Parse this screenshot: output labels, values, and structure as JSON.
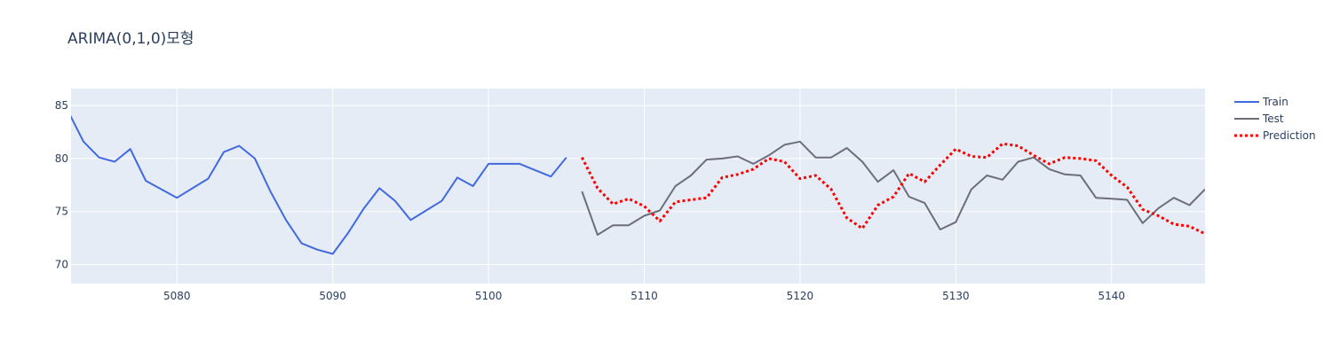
{
  "chart_data": {
    "type": "line",
    "title": "ARIMA(0,1,0)모형",
    "xlabel": "",
    "ylabel": "",
    "xlim": [
      5073.2,
      5146
    ],
    "ylim": [
      68.2,
      86.6
    ],
    "xticks": [
      5080,
      5090,
      5100,
      5110,
      5120,
      5130,
      5140
    ],
    "yticks": [
      70,
      75,
      80,
      85
    ],
    "grid": true,
    "legend_position": "top-right",
    "series": [
      {
        "name": "Train",
        "color": "#4169e1",
        "style": "solid",
        "x": [
          5073,
          5074,
          5075,
          5076,
          5077,
          5078,
          5079,
          5080,
          5081,
          5082,
          5083,
          5084,
          5085,
          5086,
          5087,
          5088,
          5089,
          5090,
          5091,
          5092,
          5093,
          5094,
          5095,
          5096,
          5097,
          5098,
          5099,
          5100,
          5101,
          5102,
          5103,
          5104,
          5105
        ],
        "y": [
          84.5,
          81.6,
          80.1,
          79.7,
          80.9,
          77.9,
          77.1,
          76.3,
          77.2,
          78.1,
          80.6,
          81.2,
          80.0,
          76.9,
          74.2,
          72.0,
          71.4,
          71.0,
          73.0,
          75.3,
          77.2,
          76.0,
          74.2,
          75.1,
          76.0,
          78.2,
          77.4,
          79.5,
          79.5,
          79.5,
          78.9,
          78.3,
          80.1
        ]
      },
      {
        "name": "Test",
        "color": "#6e6e7a",
        "style": "solid",
        "x": [
          5106,
          5107,
          5108,
          5109,
          5110,
          5111,
          5112,
          5113,
          5114,
          5115,
          5116,
          5117,
          5118,
          5119,
          5120,
          5121,
          5122,
          5123,
          5124,
          5125,
          5126,
          5127,
          5128,
          5129,
          5130,
          5131,
          5132,
          5133,
          5134,
          5135,
          5136,
          5137,
          5138,
          5139,
          5140,
          5141,
          5142,
          5143,
          5144,
          5145,
          5146
        ],
        "y": [
          76.9,
          72.8,
          73.7,
          73.7,
          74.6,
          75.1,
          77.4,
          78.4,
          79.9,
          80.0,
          80.2,
          79.5,
          80.3,
          81.3,
          81.6,
          80.1,
          80.1,
          81.0,
          79.7,
          77.8,
          78.9,
          76.4,
          75.8,
          73.3,
          74.0,
          77.1,
          78.4,
          78.0,
          79.7,
          80.1,
          79.0,
          78.5,
          78.4,
          76.3,
          76.2,
          76.1,
          73.9,
          75.3,
          76.3,
          75.6,
          77.1
        ]
      },
      {
        "name": "Prediction",
        "color": "#ff0000",
        "style": "dotted",
        "x": [
          5106,
          5107,
          5108,
          5109,
          5110,
          5111,
          5112,
          5113,
          5114,
          5115,
          5116,
          5117,
          5118,
          5119,
          5120,
          5121,
          5122,
          5123,
          5124,
          5125,
          5126,
          5127,
          5128,
          5129,
          5130,
          5131,
          5132,
          5133,
          5134,
          5135,
          5136,
          5137,
          5138,
          5139,
          5140,
          5141,
          5142,
          5143,
          5144,
          5145,
          5146
        ],
        "y": [
          80.1,
          77.2,
          75.7,
          76.2,
          75.5,
          74.1,
          75.9,
          76.1,
          76.3,
          78.2,
          78.5,
          79.0,
          80.0,
          79.7,
          78.1,
          78.4,
          77.1,
          74.4,
          73.4,
          75.6,
          76.4,
          78.6,
          77.8,
          79.4,
          80.9,
          80.2,
          80.1,
          81.4,
          81.2,
          80.3,
          79.5,
          80.1,
          80.0,
          79.8,
          78.4,
          77.3,
          75.2,
          74.6,
          73.8,
          73.6,
          72.9
        ]
      }
    ]
  }
}
